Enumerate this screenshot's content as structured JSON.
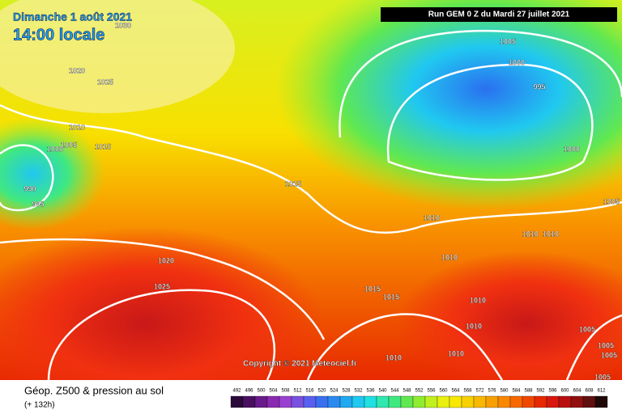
{
  "header": {
    "date": "Dimanche 1 août 2021",
    "time": "14:00 locale",
    "run": "Run GEM 0 Z du Mardi 27 juillet 2021"
  },
  "copyright": "Copyright © 2021 Meteociel.fr",
  "isobar_labels": [
    1030,
    1020,
    1025,
    1010,
    1005,
    1015,
    1000,
    990,
    995,
    1015,
    1020,
    1025,
    1005,
    1000,
    995,
    1000,
    1005,
    1010,
    1010,
    1010,
    1010,
    1015,
    1015,
    1010,
    1010,
    1005,
    1005,
    1005,
    1010,
    1010,
    1005
  ],
  "footer": {
    "title": "Géop. Z500 & pression au sol",
    "lead": "(+ 132h)"
  },
  "legend": [
    {
      "value": 492,
      "color": "#2a0a3a"
    },
    {
      "value": 496,
      "color": "#4a1060"
    },
    {
      "value": 500,
      "color": "#6a1a8a"
    },
    {
      "value": 504,
      "color": "#8a2ab0"
    },
    {
      "value": 508,
      "color": "#9a40d0"
    },
    {
      "value": 512,
      "color": "#7a50e0"
    },
    {
      "value": 516,
      "color": "#5a60f0"
    },
    {
      "value": 520,
      "color": "#3a70f0"
    },
    {
      "value": 524,
      "color": "#2a8af0"
    },
    {
      "value": 528,
      "color": "#20a8f0"
    },
    {
      "value": 532,
      "color": "#20c8f0"
    },
    {
      "value": 536,
      "color": "#20e0e0"
    },
    {
      "value": 540,
      "color": "#30e8b0"
    },
    {
      "value": 544,
      "color": "#40e880"
    },
    {
      "value": 548,
      "color": "#60e850"
    },
    {
      "value": 552,
      "color": "#90ec30"
    },
    {
      "value": 556,
      "color": "#c0f020"
    },
    {
      "value": 560,
      "color": "#e8f010"
    },
    {
      "value": 564,
      "color": "#f8e800"
    },
    {
      "value": 568,
      "color": "#f8d000"
    },
    {
      "value": 572,
      "color": "#f8b800"
    },
    {
      "value": 576,
      "color": "#f8a000"
    },
    {
      "value": 580,
      "color": "#f88800"
    },
    {
      "value": 584,
      "color": "#f86800"
    },
    {
      "value": 588,
      "color": "#f04800"
    },
    {
      "value": 592,
      "color": "#e82800"
    },
    {
      "value": 596,
      "color": "#d81810"
    },
    {
      "value": 600,
      "color": "#b81010"
    },
    {
      "value": 604,
      "color": "#901010"
    },
    {
      "value": 608,
      "color": "#601010"
    },
    {
      "value": 612,
      "color": "#200808"
    }
  ]
}
